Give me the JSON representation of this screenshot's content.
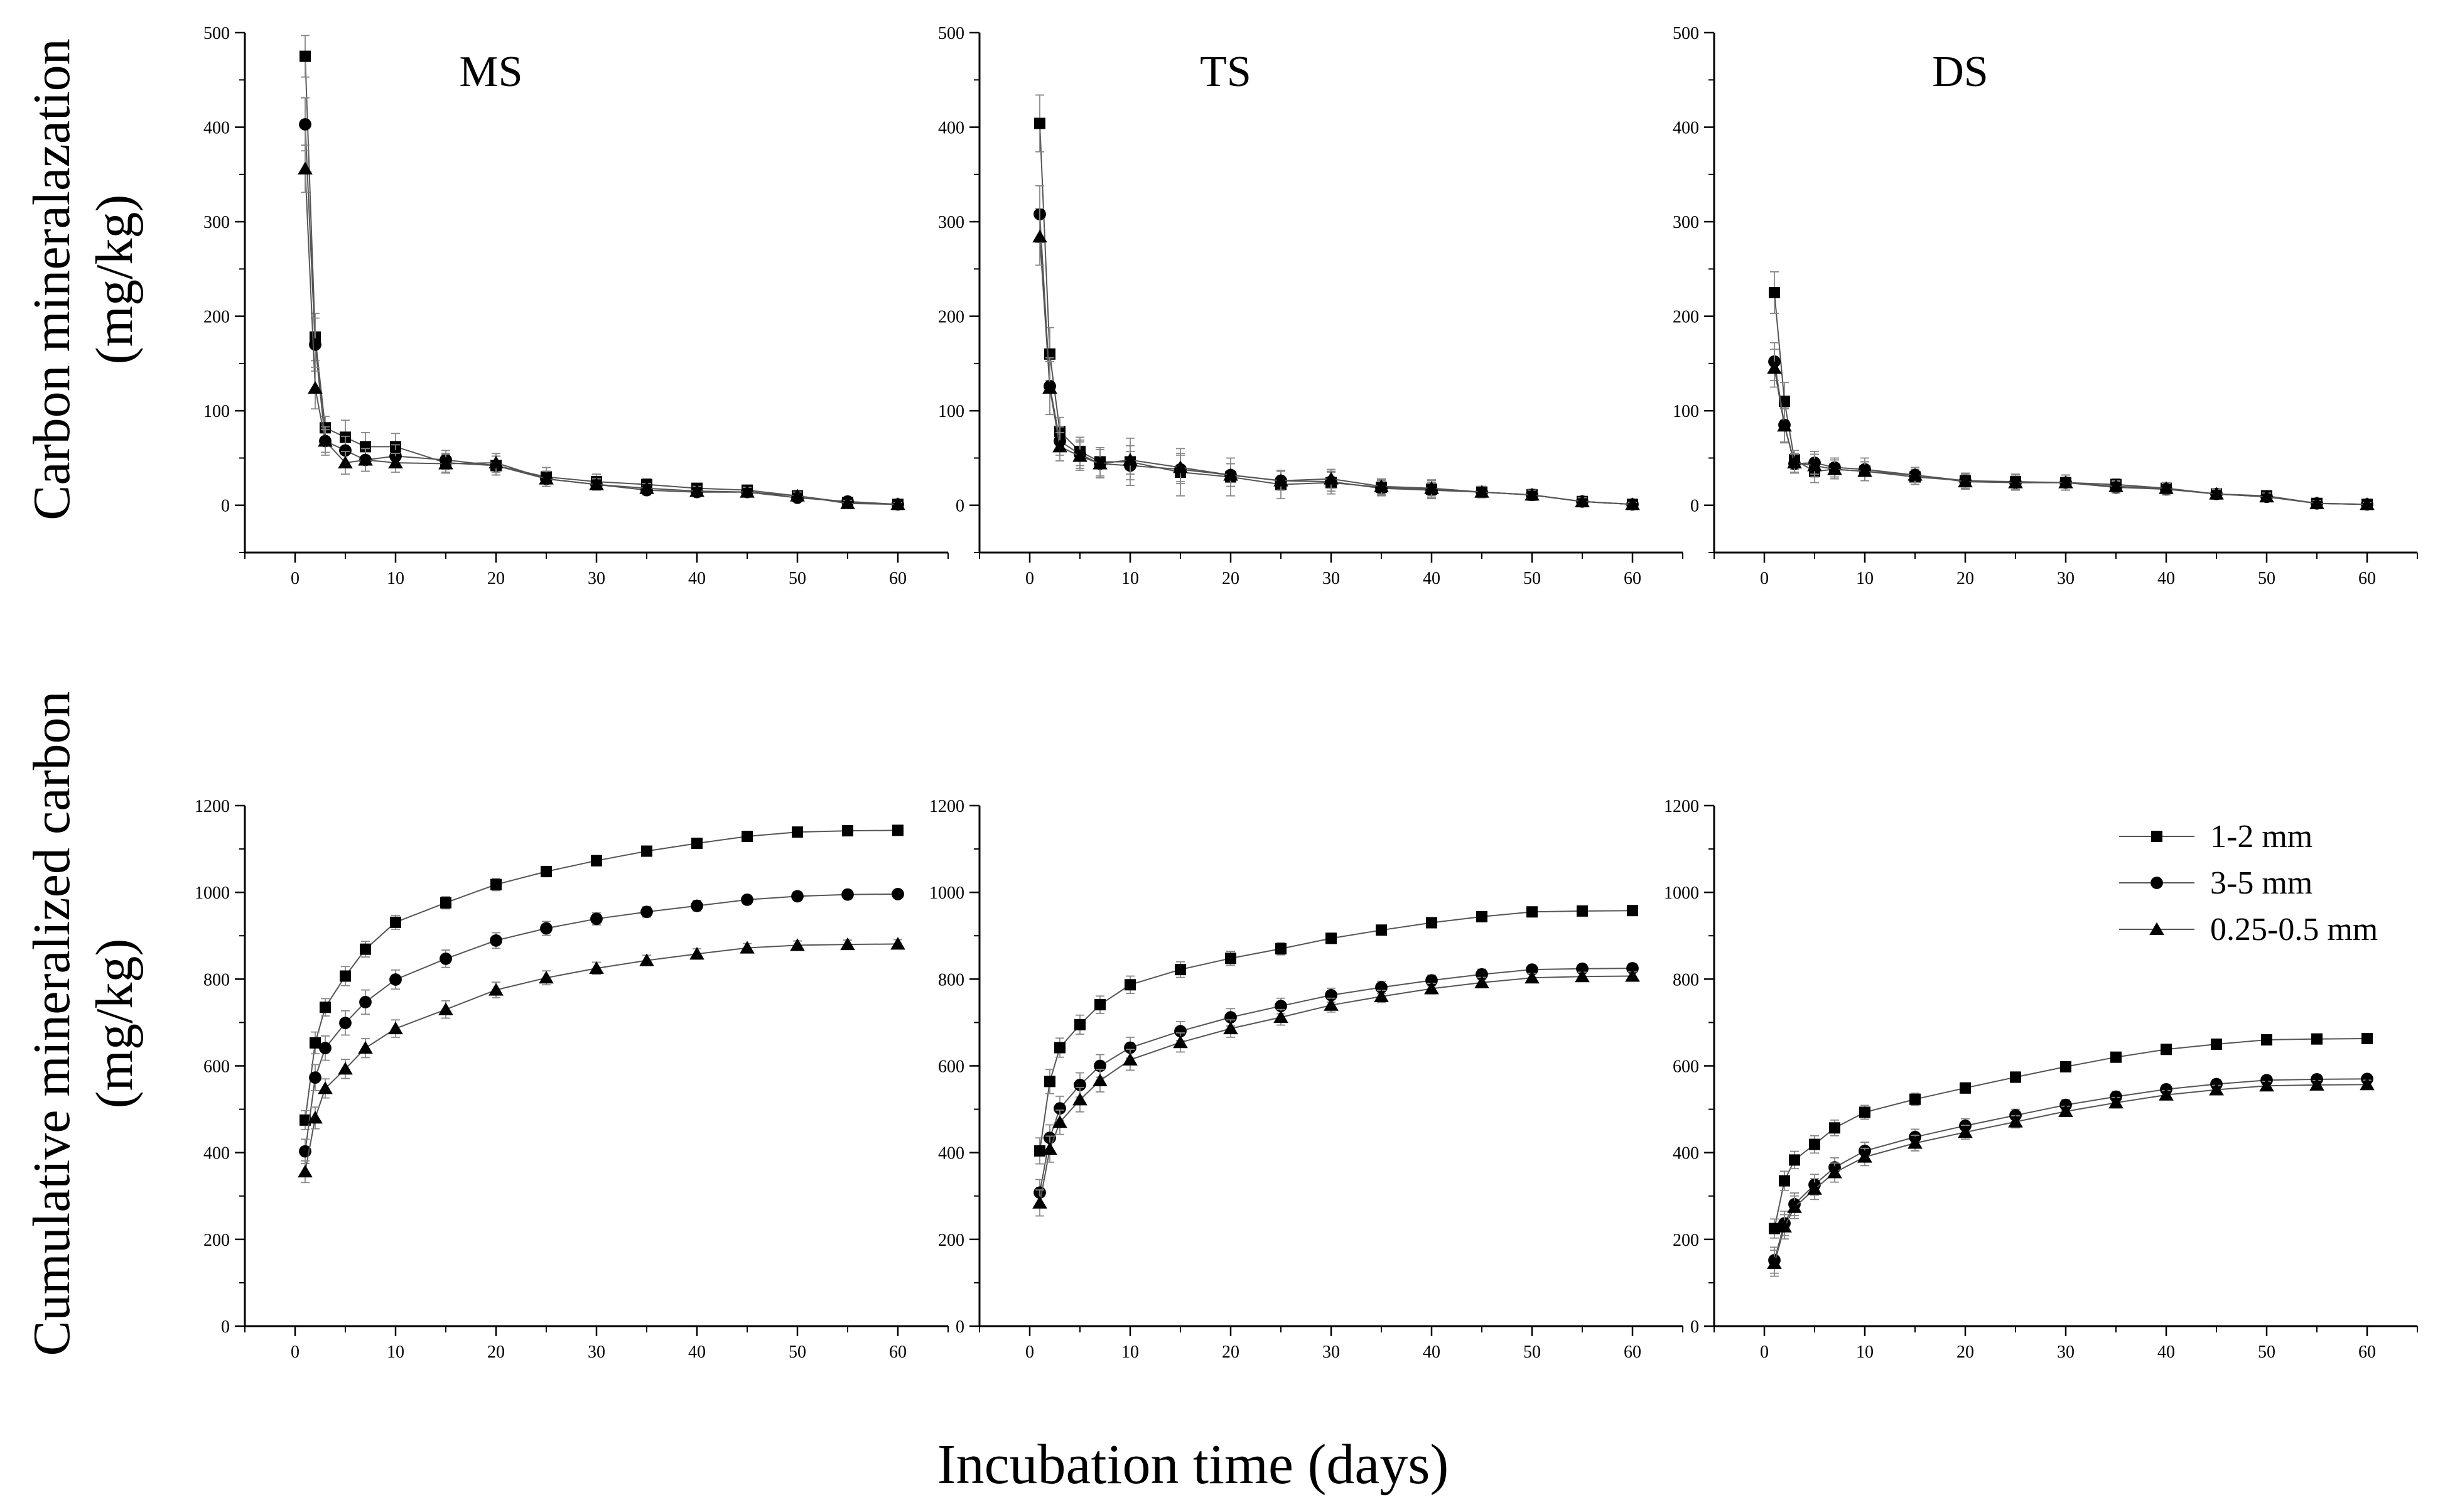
{
  "figure": {
    "x_axis_label": "Incubation time (days)",
    "row_labels": [
      {
        "line1": "Carbon mineralazation",
        "line2": "(mg/kg)"
      },
      {
        "line1": "Cumulative mineralized carbon",
        "line2": "(mg/kg)"
      }
    ],
    "legend": [
      {
        "label": "1-2 mm",
        "marker": "square"
      },
      {
        "label": "3-5 mm",
        "marker": "circle"
      },
      {
        "label": "0.25-0.5 mm",
        "marker": "triangle"
      }
    ],
    "colors": {
      "line": "#555555",
      "marker": "#000000",
      "axis": "#000000",
      "error_bar": "#888888"
    }
  },
  "chart_data": [
    {
      "type": "line",
      "panel": "MS-rate",
      "row": 0,
      "col": 0,
      "title": "MS",
      "xlim": [
        -5,
        65
      ],
      "ylim": [
        -50,
        500
      ],
      "xticks": [
        0,
        10,
        20,
        30,
        40,
        50,
        60
      ],
      "yticks": [
        0,
        100,
        200,
        300,
        400,
        500
      ],
      "x": [
        1,
        2,
        3,
        5,
        7,
        10,
        15,
        20,
        25,
        30,
        35,
        40,
        45,
        50,
        55,
        60
      ],
      "series": [
        {
          "name": "1-2 mm",
          "marker": "square",
          "values": [
            475,
            178,
            82,
            72,
            62,
            62,
            45,
            42,
            30,
            25,
            22,
            18,
            16,
            10,
            3,
            1
          ],
          "errors": [
            22,
            25,
            12,
            18,
            15,
            14,
            10,
            10,
            10,
            8,
            6,
            5,
            5,
            4,
            3,
            2
          ]
        },
        {
          "name": "3-5 mm",
          "marker": "circle",
          "values": [
            403,
            170,
            68,
            58,
            48,
            52,
            48,
            42,
            28,
            22,
            16,
            14,
            14,
            8,
            4,
            1
          ],
          "errors": [
            28,
            28,
            15,
            15,
            12,
            12,
            10,
            10,
            8,
            6,
            5,
            5,
            4,
            4,
            3,
            2
          ]
        },
        {
          "name": "0.25-0.5 mm",
          "marker": "triangle",
          "values": [
            356,
            124,
            68,
            45,
            48,
            45,
            44,
            45,
            28,
            22,
            18,
            15,
            14,
            10,
            2,
            1
          ],
          "errors": [
            25,
            22,
            12,
            12,
            12,
            10,
            10,
            10,
            8,
            6,
            5,
            5,
            5,
            4,
            3,
            2
          ]
        }
      ]
    },
    {
      "type": "line",
      "panel": "TS-rate",
      "row": 0,
      "col": 1,
      "title": "TS",
      "xlim": [
        -5,
        65
      ],
      "ylim": [
        -50,
        500
      ],
      "xticks": [
        0,
        10,
        20,
        30,
        40,
        50,
        60
      ],
      "yticks": [
        0,
        100,
        200,
        300,
        400,
        500
      ],
      "x": [
        1,
        2,
        3,
        5,
        7,
        10,
        15,
        20,
        25,
        30,
        35,
        40,
        45,
        50,
        55,
        60
      ],
      "series": [
        {
          "name": "1-2 mm",
          "marker": "square",
          "values": [
            404,
            160,
            78,
            57,
            46,
            46,
            35,
            30,
            22,
            24,
            19,
            17,
            14,
            11,
            4,
            1
          ],
          "errors": [
            30,
            28,
            15,
            15,
            15,
            25,
            25,
            20,
            15,
            12,
            8,
            10,
            6,
            6,
            4,
            2
          ]
        },
        {
          "name": "3-5 mm",
          "marker": "circle",
          "values": [
            308,
            126,
            68,
            54,
            44,
            42,
            38,
            32,
            26,
            25,
            18,
            16,
            14,
            11,
            4,
            1
          ],
          "errors": [
            30,
            30,
            15,
            15,
            15,
            15,
            15,
            12,
            10,
            10,
            8,
            8,
            6,
            5,
            4,
            2
          ]
        },
        {
          "name": "0.25-0.5 mm",
          "marker": "triangle",
          "values": [
            284,
            124,
            62,
            52,
            44,
            48,
            40,
            32,
            26,
            28,
            20,
            18,
            14,
            11,
            4,
            1
          ],
          "errors": [
            30,
            28,
            15,
            15,
            15,
            15,
            15,
            12,
            10,
            10,
            8,
            8,
            6,
            5,
            4,
            2
          ]
        }
      ]
    },
    {
      "type": "line",
      "panel": "DS-rate",
      "row": 0,
      "col": 2,
      "title": "DS",
      "xlim": [
        -5,
        65
      ],
      "ylim": [
        -50,
        500
      ],
      "xticks": [
        0,
        10,
        20,
        30,
        40,
        50,
        60
      ],
      "yticks": [
        0,
        100,
        200,
        300,
        400,
        500
      ],
      "x": [
        1,
        2,
        3,
        5,
        7,
        10,
        15,
        20,
        25,
        30,
        35,
        40,
        45,
        50,
        55,
        60
      ],
      "series": [
        {
          "name": "1-2 mm",
          "marker": "square",
          "values": [
            225,
            110,
            48,
            36,
            38,
            36,
            30,
            26,
            25,
            24,
            22,
            18,
            12,
            10,
            2,
            1
          ],
          "errors": [
            22,
            20,
            10,
            12,
            10,
            10,
            8,
            8,
            8,
            8,
            6,
            6,
            5,
            4,
            3,
            2
          ]
        },
        {
          "name": "3-5 mm",
          "marker": "circle",
          "values": [
            152,
            85,
            44,
            45,
            40,
            38,
            32,
            26,
            24,
            24,
            19,
            17,
            12,
            9,
            2,
            1
          ],
          "errors": [
            20,
            18,
            10,
            12,
            10,
            12,
            8,
            8,
            8,
            8,
            6,
            6,
            5,
            4,
            3,
            2
          ]
        },
        {
          "name": "0.25-0.5 mm",
          "marker": "triangle",
          "values": [
            145,
            84,
            45,
            42,
            38,
            36,
            32,
            25,
            24,
            24,
            20,
            18,
            12,
            9,
            2,
            1
          ],
          "errors": [
            20,
            18,
            10,
            12,
            10,
            10,
            8,
            8,
            8,
            8,
            6,
            6,
            5,
            4,
            3,
            2
          ]
        }
      ]
    },
    {
      "type": "line",
      "panel": "MS-cumulative",
      "row": 1,
      "col": 0,
      "title": "",
      "xlim": [
        -5,
        65
      ],
      "ylim": [
        0,
        1200
      ],
      "xticks": [
        0,
        10,
        20,
        30,
        40,
        50,
        60
      ],
      "yticks": [
        0,
        200,
        400,
        600,
        800,
        1000,
        1200
      ],
      "x": [
        1,
        2,
        3,
        5,
        7,
        10,
        15,
        20,
        25,
        30,
        35,
        40,
        45,
        50,
        55,
        60
      ],
      "series": [
        {
          "name": "1-2 mm",
          "marker": "square",
          "values": [
            475,
            653,
            735,
            807,
            869,
            931,
            976,
            1018,
            1048,
            1073,
            1095,
            1113,
            1129,
            1139,
            1142,
            1143
          ],
          "errors": [
            22,
            25,
            20,
            22,
            18,
            16,
            14,
            14,
            12,
            12,
            10,
            10,
            10,
            8,
            8,
            8
          ]
        },
        {
          "name": "3-5 mm",
          "marker": "circle",
          "values": [
            403,
            573,
            641,
            699,
            747,
            799,
            847,
            889,
            917,
            939,
            955,
            969,
            983,
            991,
            995,
            996
          ],
          "errors": [
            28,
            30,
            28,
            28,
            28,
            22,
            20,
            18,
            16,
            14,
            12,
            12,
            10,
            10,
            10,
            10
          ]
        },
        {
          "name": "0.25-0.5 mm",
          "marker": "triangle",
          "values": [
            356,
            480,
            548,
            593,
            641,
            686,
            730,
            775,
            803,
            825,
            843,
            858,
            872,
            878,
            880,
            881
          ],
          "errors": [
            25,
            25,
            22,
            22,
            22,
            20,
            20,
            18,
            16,
            14,
            12,
            12,
            10,
            10,
            10,
            10
          ]
        }
      ]
    },
    {
      "type": "line",
      "panel": "TS-cumulative",
      "row": 1,
      "col": 1,
      "title": "",
      "xlim": [
        -5,
        65
      ],
      "ylim": [
        0,
        1200
      ],
      "xticks": [
        0,
        10,
        20,
        30,
        40,
        50,
        60
      ],
      "yticks": [
        0,
        200,
        400,
        600,
        800,
        1000,
        1200
      ],
      "x": [
        1,
        2,
        3,
        5,
        7,
        10,
        15,
        20,
        25,
        30,
        35,
        40,
        45,
        50,
        55,
        60
      ],
      "series": [
        {
          "name": "1-2 mm",
          "marker": "square",
          "values": [
            404,
            564,
            642,
            695,
            741,
            787,
            822,
            848,
            870,
            894,
            913,
            930,
            944,
            955,
            957,
            958
          ],
          "errors": [
            30,
            28,
            22,
            22,
            20,
            20,
            18,
            16,
            14,
            12,
            10,
            10,
            8,
            8,
            8,
            8
          ]
        },
        {
          "name": "3-5 mm",
          "marker": "circle",
          "values": [
            308,
            434,
            502,
            556,
            600,
            642,
            680,
            712,
            738,
            763,
            781,
            797,
            811,
            822,
            824,
            825
          ],
          "errors": [
            30,
            30,
            28,
            28,
            26,
            24,
            22,
            20,
            18,
            16,
            14,
            12,
            12,
            10,
            10,
            10
          ]
        },
        {
          "name": "0.25-0.5 mm",
          "marker": "triangle",
          "values": [
            284,
            408,
            470,
            522,
            566,
            614,
            654,
            686,
            712,
            740,
            760,
            778,
            792,
            803,
            806,
            807
          ],
          "errors": [
            30,
            30,
            28,
            28,
            26,
            24,
            22,
            20,
            18,
            16,
            14,
            12,
            12,
            10,
            10,
            10
          ]
        }
      ]
    },
    {
      "type": "line",
      "panel": "DS-cumulative",
      "row": 1,
      "col": 2,
      "title": "",
      "xlim": [
        -5,
        65
      ],
      "ylim": [
        0,
        1200
      ],
      "xticks": [
        0,
        10,
        20,
        30,
        40,
        50,
        60
      ],
      "yticks": [
        0,
        200,
        400,
        600,
        800,
        1000,
        1200
      ],
      "x": [
        1,
        2,
        3,
        5,
        7,
        10,
        15,
        20,
        25,
        30,
        35,
        40,
        45,
        50,
        55,
        60
      ],
      "series": [
        {
          "name": "1-2 mm",
          "marker": "square",
          "values": [
            225,
            335,
            383,
            419,
            457,
            493,
            523,
            549,
            574,
            598,
            620,
            638,
            650,
            660,
            662,
            663
          ],
          "errors": [
            22,
            22,
            20,
            20,
            18,
            16,
            14,
            12,
            12,
            10,
            10,
            10,
            8,
            8,
            8,
            8
          ]
        },
        {
          "name": "3-5 mm",
          "marker": "circle",
          "values": [
            152,
            237,
            281,
            326,
            366,
            404,
            436,
            462,
            486,
            510,
            529,
            546,
            558,
            567,
            569,
            570
          ],
          "errors": [
            30,
            28,
            26,
            24,
            22,
            20,
            18,
            16,
            14,
            12,
            12,
            10,
            10,
            10,
            10,
            10
          ]
        },
        {
          "name": "0.25-0.5 mm",
          "marker": "triangle",
          "values": [
            145,
            229,
            274,
            316,
            354,
            390,
            422,
            447,
            471,
            495,
            515,
            533,
            545,
            554,
            556,
            557
          ],
          "errors": [
            30,
            28,
            26,
            24,
            22,
            20,
            18,
            16,
            14,
            12,
            12,
            10,
            10,
            10,
            10,
            10
          ]
        }
      ]
    }
  ]
}
